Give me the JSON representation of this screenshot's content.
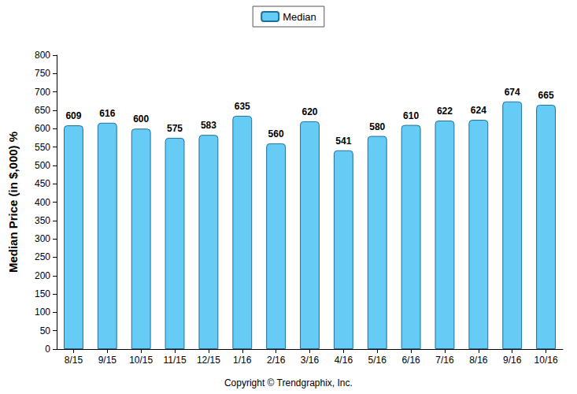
{
  "chart_data": {
    "type": "bar",
    "y_label": "Median Price (in $,000) %",
    "annotations": [
      "Copyright © Trendgraphix, Inc."
    ],
    "categories": [
      "8/15",
      "9/15",
      "10/15",
      "11/15",
      "12/15",
      "1/16",
      "2/16",
      "3/16",
      "4/16",
      "5/16",
      "6/16",
      "7/16",
      "8/16",
      "9/16",
      "10/16"
    ],
    "series": [
      {
        "name": "Median",
        "color": "#66ccf5",
        "values": [
          609,
          616,
          600,
          575,
          583,
          635,
          560,
          620,
          541,
          580,
          610,
          622,
          624,
          674,
          665
        ]
      }
    ],
    "ylim": [
      0,
      800
    ],
    "yticks": [
      0,
      50,
      100,
      150,
      200,
      250,
      300,
      350,
      400,
      450,
      500,
      550,
      600,
      650,
      700,
      750,
      800
    ],
    "grid": false,
    "legend": "top",
    "data_labels": true
  }
}
